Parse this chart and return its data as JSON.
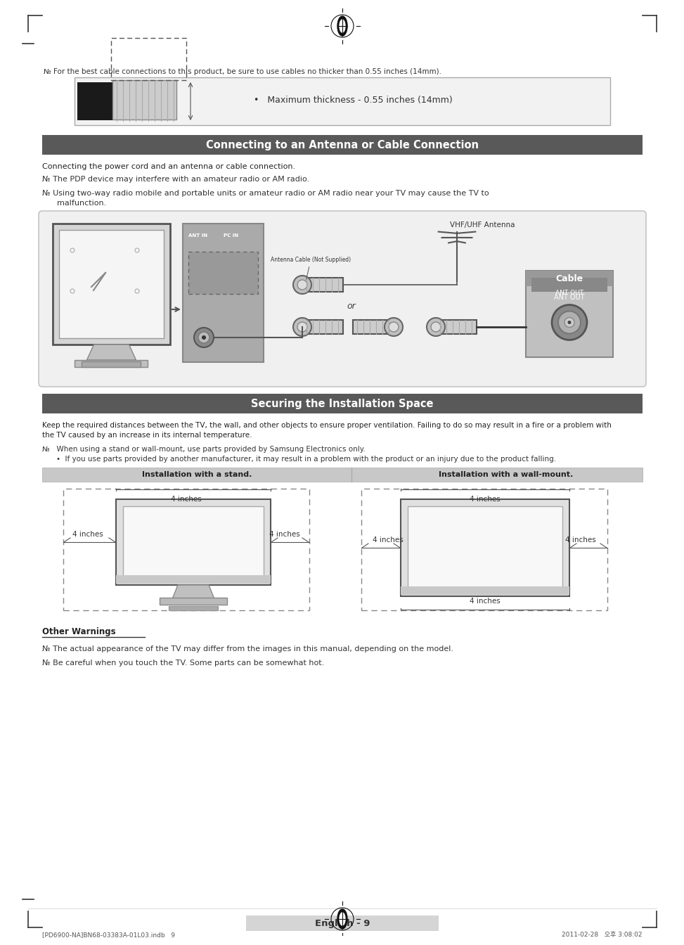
{
  "page_bg": "#ffffff",
  "header_note": "№ For the best cable connections to this product, be sure to use cables no thicker than 0.55 inches (14mm).",
  "cable_box_bullet": "•   Maximum thickness - 0.55 inches (14mm)",
  "section1_title": "Connecting to an Antenna or Cable Connection",
  "section1_title_bg": "#595959",
  "section1_title_color": "#ffffff",
  "section1_body1": "Connecting the power cord and an antenna or cable connection.",
  "section1_note1": "№ The PDP device may interfere with an amateur radio or AM radio.",
  "section1_note2a": "№ Using two-way radio mobile and portable units or amateur radio or AM radio near your TV may cause the TV to",
  "section1_note2b": "      malfunction.",
  "antenna_label": "VHF/UHF Antenna",
  "cable_label_inner": "Antenna Cable (Not Supplied)",
  "cable_box_label": "Cable",
  "ant_out_label": "ANT OUT",
  "or_label": "or",
  "section2_title": "Securing the Installation Space",
  "section2_title_bg": "#595959",
  "section2_title_color": "#ffffff",
  "section2_body1a": "Keep the required distances between the TV, the wall, and other objects to ensure proper ventilation. Failing to do so may result in a fire or a problem with",
  "section2_body1b": "the TV caused by an increase in its internal temperature.",
  "section2_note1": "№   When using a stand or wall-mount, use parts provided by Samsung Electronics only.",
  "section2_bullet1": "•  If you use parts provided by another manufacturer, it may result in a problem with the product or an injury due to the product falling.",
  "install_stand_label": "Installation with a stand.",
  "install_wall_label": "Installation with a wall-mount.",
  "install_header_bg": "#c8c8c8",
  "inches_label": "4 inches",
  "other_warnings_title": "Other Warnings",
  "other_warn1": "№ The actual appearance of the TV may differ from the images in this manual, depending on the model.",
  "other_warn2": "№ Be careful when you touch the TV. Some parts can be somewhat hot.",
  "footer_text": "English - 9",
  "footer_small": "[PD6900-NA]BN68-03383A-01L03.indb   9",
  "footer_date": "2011-02-28   오후 3:08:02",
  "note_sym": "№",
  "ant_in": "ANT IN",
  "pc_in": "PC IN"
}
